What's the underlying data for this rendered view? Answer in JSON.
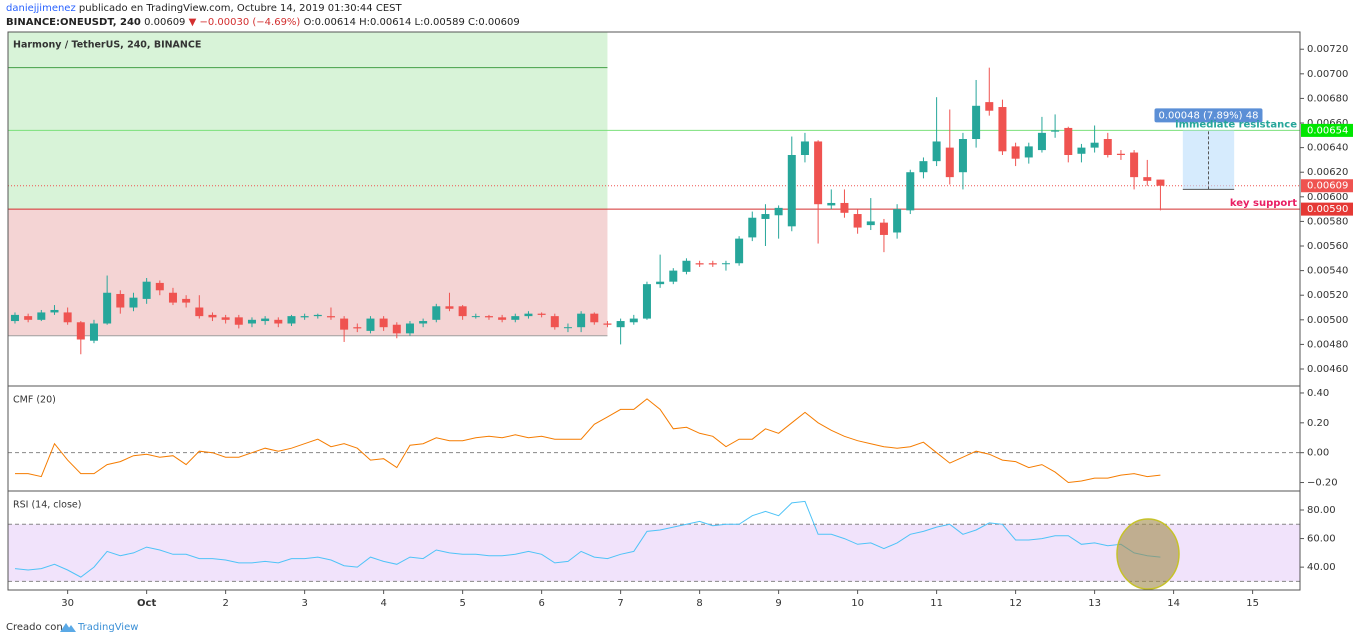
{
  "header": {
    "user": "daniejjimenez",
    "published": "publicado en TradingView.com, Octubre 14, 2019 01:30:44 CEST",
    "symbol": "BINANCE:ONEUSDT, 240",
    "last": "0.00609",
    "change": "▼ −0.00030 (−4.69%)",
    "ohlc": "O:0.00614 H:0.00614 L:0.00589 C:0.00609"
  },
  "footer": {
    "text": "Creado con",
    "brand": "TradingView"
  },
  "chart_data": [
    {
      "type": "candlestick",
      "title": "Harmony / TetherUS, 240, BINANCE",
      "up_color": "#26a69a",
      "down_color": "#ef5350",
      "open": [
        0.00499,
        0.00503,
        0.005,
        0.00506,
        0.00506,
        0.00498,
        0.00483,
        0.00497,
        0.00521,
        0.0051,
        0.00517,
        0.0053,
        0.00522,
        0.00517,
        0.0051,
        0.00504,
        0.00502,
        0.00502,
        0.00497,
        0.00499,
        0.005,
        0.00497,
        0.00502,
        0.00503,
        0.00503,
        0.00501,
        0.00494,
        0.00491,
        0.00501,
        0.00496,
        0.00489,
        0.00497,
        0.005,
        0.00511,
        0.00511,
        0.00503,
        0.00503,
        0.00502,
        0.005,
        0.00503,
        0.00505,
        0.00503,
        0.00494,
        0.00494,
        0.00505,
        0.00497,
        0.00494,
        0.00498,
        0.00501,
        0.00529,
        0.00531,
        0.00539,
        0.00546,
        0.00546,
        0.00546,
        0.00546,
        0.00567,
        0.00582,
        0.00585,
        0.00576,
        0.00634,
        0.00645,
        0.00593,
        0.00595,
        0.00586,
        0.00577,
        0.00579,
        0.00571,
        0.00589,
        0.0062,
        0.00629,
        0.0064,
        0.0062,
        0.00647,
        0.00677,
        0.00673,
        0.00641,
        0.00632,
        0.00638,
        0.00653,
        0.00656,
        0.00635,
        0.0064,
        0.00647,
        0.00635,
        0.00636,
        0.00616,
        0.00614
      ],
      "high": [
        0.00506,
        0.00505,
        0.00508,
        0.00512,
        0.0051,
        0.00499,
        0.005,
        0.00536,
        0.00524,
        0.00522,
        0.00534,
        0.00532,
        0.00526,
        0.0052,
        0.0052,
        0.00506,
        0.00504,
        0.00504,
        0.00502,
        0.00503,
        0.00502,
        0.00504,
        0.00505,
        0.00505,
        0.0051,
        0.00503,
        0.00497,
        0.00503,
        0.00503,
        0.00498,
        0.00499,
        0.00501,
        0.00513,
        0.00522,
        0.00512,
        0.00505,
        0.00504,
        0.00504,
        0.00505,
        0.00507,
        0.00506,
        0.00505,
        0.00497,
        0.00507,
        0.00506,
        0.00499,
        0.00501,
        0.00504,
        0.00531,
        0.00553,
        0.00542,
        0.0055,
        0.00548,
        0.00548,
        0.00548,
        0.00568,
        0.00588,
        0.00594,
        0.00593,
        0.00649,
        0.00652,
        0.00646,
        0.00606,
        0.00606,
        0.0059,
        0.00599,
        0.00582,
        0.00594,
        0.00622,
        0.00632,
        0.00681,
        0.00671,
        0.00652,
        0.00695,
        0.00705,
        0.00679,
        0.00644,
        0.00644,
        0.00665,
        0.00667,
        0.00657,
        0.00643,
        0.00658,
        0.00652,
        0.00638,
        0.00638,
        0.0063,
        0.00614
      ],
      "low": [
        0.00497,
        0.00498,
        0.00499,
        0.00504,
        0.00496,
        0.00472,
        0.00481,
        0.00496,
        0.00505,
        0.00507,
        0.00513,
        0.0052,
        0.00512,
        0.0051,
        0.00501,
        0.00499,
        0.00497,
        0.00493,
        0.00494,
        0.00496,
        0.00494,
        0.00495,
        0.005,
        0.00501,
        0.005,
        0.00482,
        0.0049,
        0.00489,
        0.00491,
        0.00485,
        0.00487,
        0.00494,
        0.00498,
        0.00507,
        0.005,
        0.00501,
        0.005,
        0.00498,
        0.00498,
        0.00501,
        0.00502,
        0.00492,
        0.0049,
        0.0049,
        0.00496,
        0.00494,
        0.0048,
        0.00496,
        0.005,
        0.00526,
        0.00529,
        0.00537,
        0.00543,
        0.00543,
        0.0054,
        0.00544,
        0.00564,
        0.0056,
        0.00566,
        0.00572,
        0.00628,
        0.00562,
        0.0059,
        0.00583,
        0.0057,
        0.00573,
        0.00555,
        0.00566,
        0.00586,
        0.00615,
        0.00625,
        0.0061,
        0.00606,
        0.0064,
        0.00666,
        0.00634,
        0.00625,
        0.00627,
        0.00636,
        0.00648,
        0.00628,
        0.00628,
        0.00636,
        0.00632,
        0.0063,
        0.00606,
        0.00609,
        0.00589
      ],
      "close": [
        0.00504,
        0.005,
        0.00506,
        0.00508,
        0.00498,
        0.00484,
        0.00497,
        0.00522,
        0.0051,
        0.00518,
        0.00531,
        0.00524,
        0.00514,
        0.00514,
        0.00503,
        0.00502,
        0.005,
        0.00496,
        0.005,
        0.00501,
        0.00497,
        0.00503,
        0.00503,
        0.00504,
        0.00502,
        0.00492,
        0.00493,
        0.00501,
        0.00494,
        0.00489,
        0.00497,
        0.00499,
        0.00511,
        0.00509,
        0.00503,
        0.00503,
        0.00502,
        0.005,
        0.00503,
        0.00505,
        0.00504,
        0.00494,
        0.00494,
        0.00505,
        0.00498,
        0.00496,
        0.00499,
        0.00501,
        0.00529,
        0.00531,
        0.0054,
        0.00548,
        0.00545,
        0.00545,
        0.00546,
        0.00566,
        0.00583,
        0.00586,
        0.00591,
        0.00634,
        0.00645,
        0.00594,
        0.00595,
        0.00587,
        0.00575,
        0.0058,
        0.00569,
        0.0059,
        0.0062,
        0.00629,
        0.00645,
        0.00616,
        0.00647,
        0.00674,
        0.0067,
        0.00637,
        0.00631,
        0.00641,
        0.00652,
        0.00654,
        0.00634,
        0.0064,
        0.00644,
        0.00634,
        0.00634,
        0.00616,
        0.00613,
        0.00609
      ],
      "xlim": [
        -0.53,
        97.6
      ],
      "ylim": [
        0.00447,
        0.00734
      ],
      "yticks": [
        {
          "value": 0.0046,
          "label": "0.00460"
        },
        {
          "value": 0.0048,
          "label": "0.00480"
        },
        {
          "value": 0.005,
          "label": "0.00500"
        },
        {
          "value": 0.0052,
          "label": "0.00520"
        },
        {
          "value": 0.0054,
          "label": "0.00540"
        },
        {
          "value": 0.0056,
          "label": "0.00560"
        },
        {
          "value": 0.0058,
          "label": "0.00580"
        },
        {
          "value": 0.006,
          "label": "0.00600"
        },
        {
          "value": 0.0062,
          "label": "0.00620"
        },
        {
          "value": 0.0064,
          "label": "0.00640"
        },
        {
          "value": 0.0066,
          "label": "0.00660"
        },
        {
          "value": 0.0068,
          "label": "0.00680"
        },
        {
          "value": 0.007,
          "label": "0.00700"
        },
        {
          "value": 0.0072,
          "label": "0.00720"
        }
      ],
      "zones": [
        {
          "from": 0.0059,
          "to": 0.00734,
          "x_end": 45,
          "color": "#d8f3d8"
        },
        {
          "from": 0.00487,
          "to": 0.0059,
          "x_end": 45,
          "color": "#f4d4d4"
        }
      ],
      "lines": [
        {
          "value": 0.00705,
          "x_end": 45,
          "color": "#43a047"
        },
        {
          "value": 0.00487,
          "x_end": 45,
          "color": "#9e9e9e"
        },
        {
          "value": 0.00654,
          "color": "#7be07b"
        },
        {
          "value": 0.00609,
          "color": "#ef5350",
          "dash": true
        },
        {
          "value": 0.0059,
          "color": "#d32f2f"
        }
      ],
      "price_labels": [
        {
          "value": 0.00654,
          "label": "0.00654",
          "color": "#00e600"
        },
        {
          "value": 0.00609,
          "label": "0.00609",
          "color": "#ef5350"
        },
        {
          "value": 0.0059,
          "label": "0.00590",
          "color": "#e53935"
        }
      ],
      "annotations": [
        {
          "text": "immediate resistance",
          "value": 0.00654,
          "color": "#26a69a"
        },
        {
          "text": "key support",
          "value": 0.0059,
          "color": "#e91e63"
        }
      ],
      "measure": {
        "from": 0.00606,
        "to": 0.00654,
        "x": [
          88.7,
          92.6
        ],
        "label": "0.00048 (7.89%) 48",
        "color": "#bbdefb"
      }
    },
    {
      "type": "line",
      "title": "CMF (20)",
      "color": "#f57c00",
      "values": [
        -0.14,
        -0.14,
        -0.16,
        0.06,
        -0.05,
        -0.14,
        -0.14,
        -0.08,
        -0.06,
        -0.02,
        -0.01,
        -0.03,
        -0.02,
        -0.08,
        0.01,
        0.0,
        -0.03,
        -0.03,
        0.0,
        0.03,
        0.01,
        0.03,
        0.06,
        0.09,
        0.04,
        0.06,
        0.03,
        -0.05,
        -0.04,
        -0.1,
        0.05,
        0.06,
        0.1,
        0.08,
        0.08,
        0.1,
        0.11,
        0.1,
        0.12,
        0.1,
        0.11,
        0.09,
        0.09,
        0.09,
        0.19,
        0.24,
        0.29,
        0.29,
        0.36,
        0.29,
        0.16,
        0.17,
        0.13,
        0.11,
        0.04,
        0.09,
        0.09,
        0.16,
        0.13,
        0.2,
        0.27,
        0.2,
        0.15,
        0.11,
        0.08,
        0.06,
        0.04,
        0.03,
        0.04,
        0.07,
        0.0,
        -0.07,
        -0.03,
        0.01,
        -0.01,
        -0.05,
        -0.06,
        -0.1,
        -0.08,
        -0.13,
        -0.2,
        -0.19,
        -0.17,
        -0.17,
        -0.15,
        -0.14,
        -0.16,
        -0.15
      ],
      "xlim": [
        -0.53,
        97.6
      ],
      "ylim": [
        -0.25,
        0.44
      ],
      "yticks": [
        {
          "value": -0.2,
          "label": "−0.20"
        },
        {
          "value": 0,
          "label": "0.00"
        },
        {
          "value": 0.2,
          "label": "0.20"
        },
        {
          "value": 0.4,
          "label": "0.40"
        }
      ],
      "reference_lines": [
        0
      ]
    },
    {
      "type": "line",
      "title": "RSI (14, close)",
      "color": "#4fc3f7",
      "values": [
        39,
        38,
        39,
        42,
        38,
        33,
        40,
        51,
        48,
        50,
        54,
        52,
        49,
        49,
        46,
        46,
        45,
        43,
        43,
        44,
        43,
        46,
        46,
        47,
        45,
        41,
        40,
        47,
        44,
        42,
        47,
        46,
        52,
        50,
        49,
        49,
        48,
        48,
        49,
        51,
        49,
        43,
        44,
        51,
        47,
        46,
        49,
        51,
        65,
        66,
        68,
        70,
        72,
        69,
        70,
        70,
        76,
        79,
        76,
        85,
        86,
        63,
        63,
        60,
        56,
        57,
        53,
        57,
        63,
        65,
        68,
        70,
        63,
        66,
        71,
        70,
        59,
        59,
        60,
        62,
        62,
        56,
        57,
        55,
        56,
        50,
        48,
        47
      ],
      "xlim": [
        -0.53,
        97.6
      ],
      "ylim": [
        24,
        92.6
      ],
      "yticks": [
        {
          "value": 40,
          "label": "40.00"
        },
        {
          "value": 60,
          "label": "60.00"
        },
        {
          "value": 80,
          "label": "80.00"
        }
      ],
      "reference_lines": [
        30,
        70
      ],
      "band_color": "#f1e3fb",
      "xticks": [
        {
          "value": 4,
          "label": "30"
        },
        {
          "value": 10,
          "label": "Oct"
        },
        {
          "value": 16,
          "label": "2"
        },
        {
          "value": 22,
          "label": "3"
        },
        {
          "value": 28,
          "label": "4"
        },
        {
          "value": 34,
          "label": "5"
        },
        {
          "value": 40,
          "label": "6"
        },
        {
          "value": 46,
          "label": "7"
        },
        {
          "value": 52,
          "label": "8"
        },
        {
          "value": 58,
          "label": "9"
        },
        {
          "value": 64,
          "label": "10"
        },
        {
          "value": 70,
          "label": "11"
        },
        {
          "value": 76,
          "label": "12"
        },
        {
          "value": 82,
          "label": "13"
        },
        {
          "value": 88,
          "label": "14"
        },
        {
          "value": 94,
          "label": "15"
        }
      ]
    }
  ]
}
